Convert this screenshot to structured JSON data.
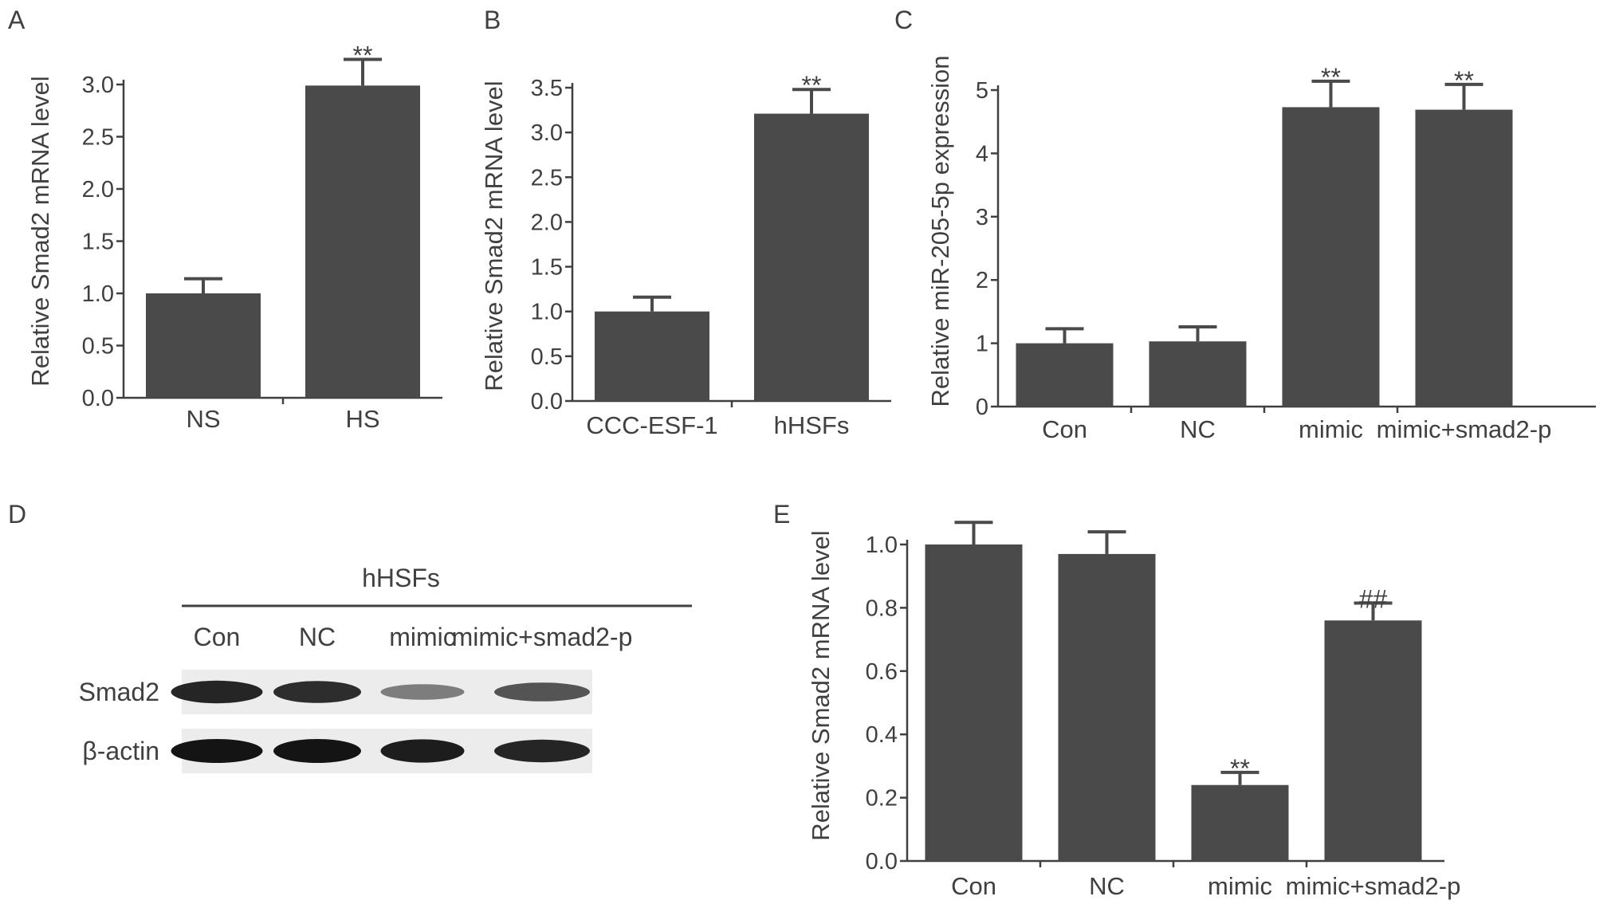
{
  "chart_data": [
    {
      "panel": "A",
      "type": "bar",
      "ylabel": "Relative Smad2 mRNA level",
      "categories": [
        "NS",
        "HS"
      ],
      "values": [
        1.0,
        2.99
      ],
      "errors": [
        0.14,
        0.25
      ],
      "significance": [
        "",
        "**"
      ],
      "ylim": [
        0,
        3.0
      ],
      "yticks": [
        "0.0",
        "0.5",
        "1.0",
        "1.5",
        "2.0",
        "2.5",
        "3.0"
      ],
      "grid": false
    },
    {
      "panel": "B",
      "type": "bar",
      "ylabel": "Relative Smad2 mRNA level",
      "categories": [
        "CCC-ESF-1",
        "hHSFs"
      ],
      "values": [
        1.0,
        3.21
      ],
      "errors": [
        0.16,
        0.27
      ],
      "significance": [
        "",
        "**"
      ],
      "ylim": [
        0,
        3.5
      ],
      "yticks": [
        "0.0",
        "0.5",
        "1.0",
        "1.5",
        "2.0",
        "2.5",
        "3.0",
        "3.5"
      ],
      "grid": false
    },
    {
      "panel": "C",
      "type": "bar",
      "ylabel": "Relative miR-205-5p expression",
      "categories": [
        "Con",
        "NC",
        "mimic",
        "mimic+smad2-p"
      ],
      "values": [
        1.0,
        1.03,
        4.73,
        4.69
      ],
      "errors": [
        0.23,
        0.23,
        0.41,
        0.4
      ],
      "significance": [
        "",
        "",
        "**",
        "**"
      ],
      "ylim": [
        0,
        5
      ],
      "yticks": [
        "0",
        "1",
        "2",
        "3",
        "4",
        "5"
      ],
      "grid": false
    },
    {
      "panel": "E",
      "type": "bar",
      "ylabel": "Relative Smad2 mRNA level",
      "categories": [
        "Con",
        "NC",
        "mimic",
        "mimic+smad2-p"
      ],
      "values": [
        1.0,
        0.97,
        0.24,
        0.76
      ],
      "errors": [
        0.07,
        0.07,
        0.04,
        0.055
      ],
      "significance": [
        "",
        "",
        "**",
        "##"
      ],
      "ylim": [
        0,
        1.0
      ],
      "yticks": [
        "0.0",
        "0.2",
        "0.4",
        "0.6",
        "0.8",
        "1.0"
      ],
      "grid": false
    }
  ],
  "blot": {
    "panel": "D",
    "title": "hHSFs",
    "lanes": [
      "Con",
      "NC",
      "mimic",
      "mimic+smad2-p"
    ],
    "rows": [
      {
        "label": "Smad2",
        "intensities": [
          0.9,
          0.85,
          0.35,
          0.6
        ]
      },
      {
        "label": "β-actin",
        "intensities": [
          1.0,
          1.0,
          0.95,
          0.9
        ]
      }
    ]
  },
  "colors": {
    "bar": "#4a4a4a",
    "axis": "#404040",
    "band": "#141414",
    "blot_bg": "#ececec"
  }
}
